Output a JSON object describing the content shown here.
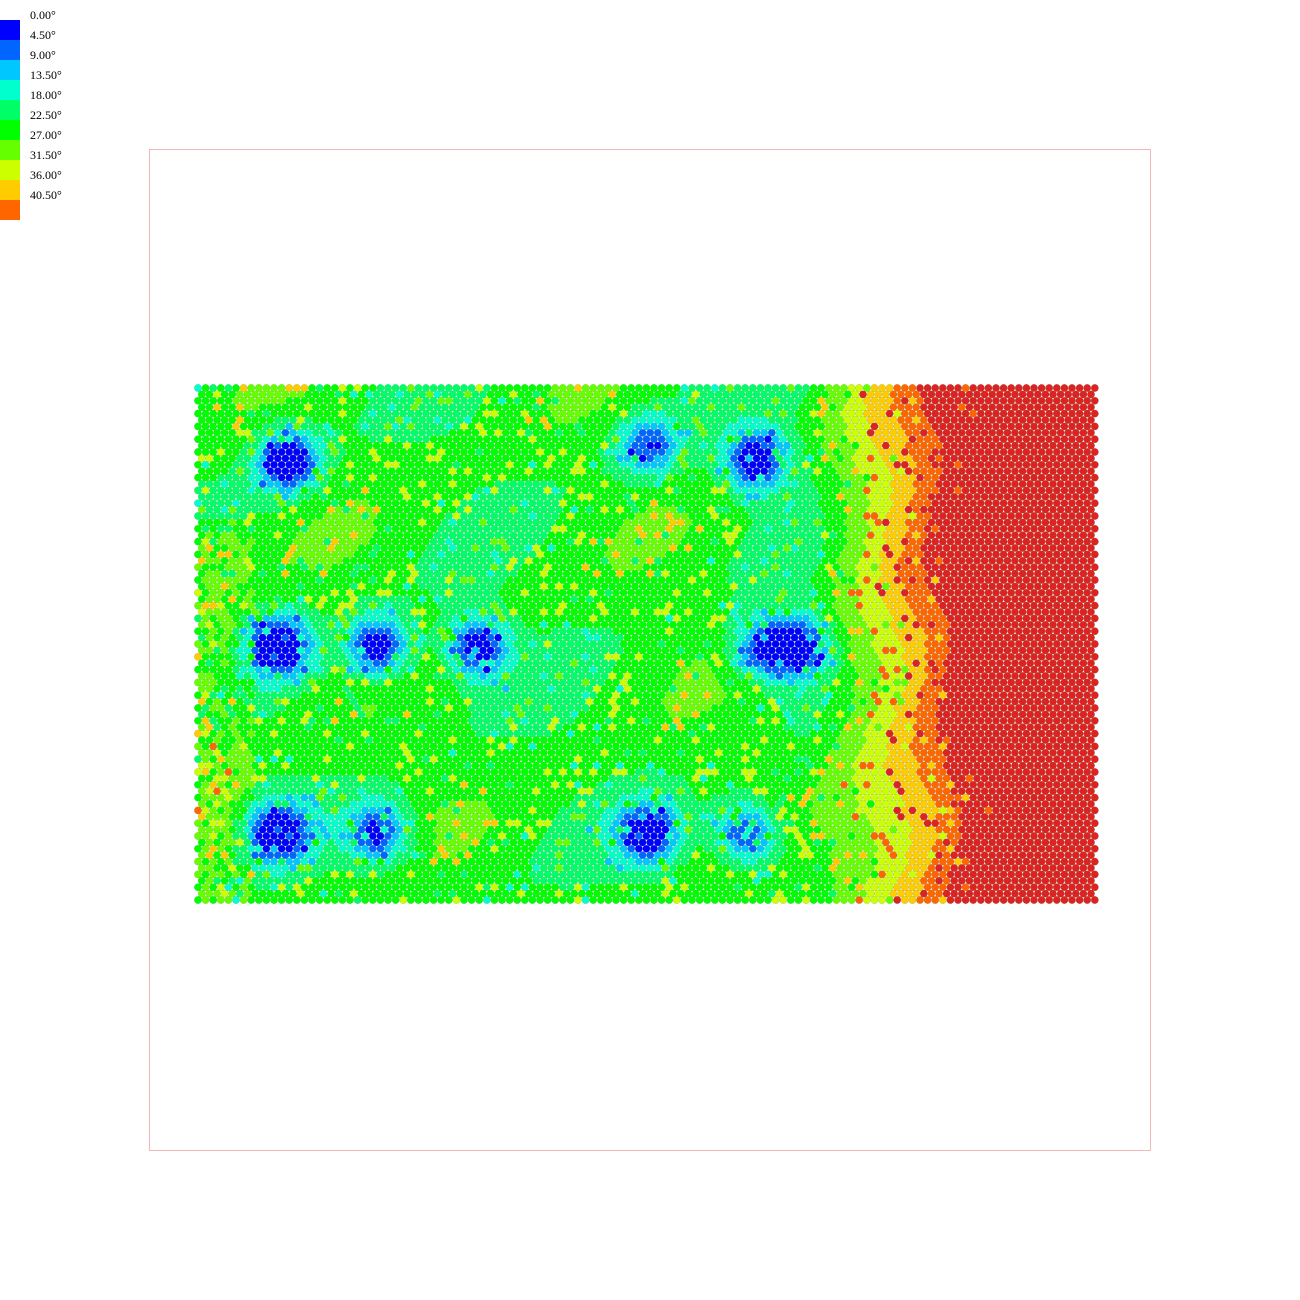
{
  "chart_data": {
    "type": "heatmap",
    "title": "",
    "xlabel": "",
    "ylabel": "",
    "legend": {
      "placement": "top-left",
      "labels": [
        "0.00°",
        "4.50°",
        "9.00°",
        "13.50°",
        "18.00°",
        "22.50°",
        "27.00°",
        "31.50°",
        "36.00°",
        "40.50°"
      ],
      "colors": [
        "#0000ff",
        "#0066ff",
        "#00c8ff",
        "#00ffcc",
        "#00ff66",
        "#00ff00",
        "#66ff00",
        "#ccff00",
        "#ffcc00",
        "#ff6600"
      ],
      "thresholds": [
        0,
        4.5,
        9,
        13.5,
        18,
        22.5,
        27,
        31.5,
        36,
        40.5
      ]
    },
    "grid": "hexagonal",
    "frame_color": "#f2b8b8",
    "max_color": "#dd2222",
    "low_spots": [
      {
        "x": 0.1,
        "y": 0.14,
        "strength": 1.0
      },
      {
        "x": 0.5,
        "y": 0.11,
        "strength": 0.7
      },
      {
        "x": 0.62,
        "y": 0.14,
        "strength": 0.9
      },
      {
        "x": 0.09,
        "y": 0.5,
        "strength": 1.0
      },
      {
        "x": 0.2,
        "y": 0.5,
        "strength": 0.9
      },
      {
        "x": 0.31,
        "y": 0.5,
        "strength": 0.9
      },
      {
        "x": 0.63,
        "y": 0.5,
        "strength": 0.8
      },
      {
        "x": 0.67,
        "y": 0.5,
        "strength": 0.8
      },
      {
        "x": 0.09,
        "y": 0.86,
        "strength": 0.9
      },
      {
        "x": 0.2,
        "y": 0.86,
        "strength": 0.8
      },
      {
        "x": 0.5,
        "y": 0.86,
        "strength": 0.9
      },
      {
        "x": 0.61,
        "y": 0.86,
        "strength": 0.8
      }
    ]
  }
}
